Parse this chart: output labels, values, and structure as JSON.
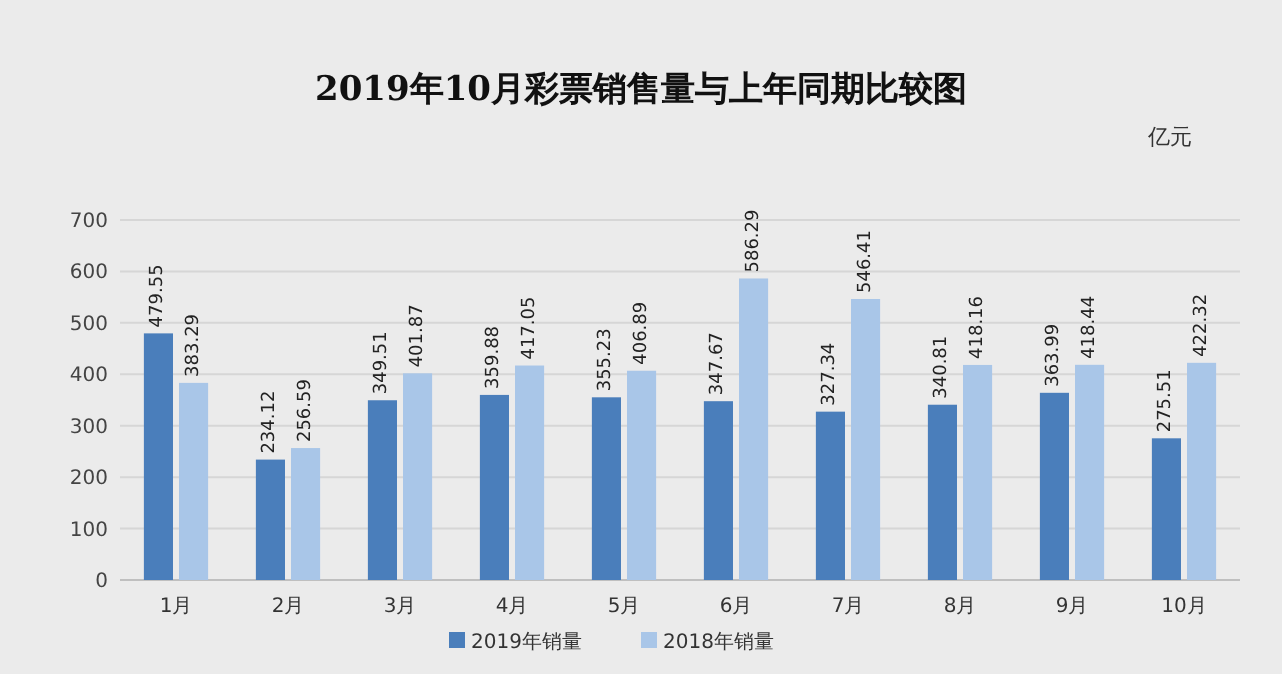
{
  "chart_data": {
    "type": "bar",
    "title": "2019年10月彩票销售量与上年同期比较图",
    "annotations": [
      "亿元"
    ],
    "categories": [
      "1月",
      "2月",
      "3月",
      "4月",
      "5月",
      "6月",
      "7月",
      "8月",
      "9月",
      "10月"
    ],
    "series": [
      {
        "name": "2019年销量",
        "color": "#4a7ebb",
        "values": [
          479.55,
          234.12,
          349.51,
          359.88,
          355.23,
          347.67,
          327.34,
          340.81,
          363.99,
          275.51
        ]
      },
      {
        "name": "2018年销量",
        "color": "#a9c6e8",
        "values": [
          383.29,
          256.59,
          401.87,
          417.05,
          406.89,
          586.29,
          546.41,
          418.16,
          418.44,
          422.32
        ]
      }
    ],
    "ylim": [
      0,
      700
    ],
    "yticks": [
      0,
      100,
      200,
      300,
      400,
      500,
      600,
      700
    ],
    "grid": "y",
    "legend": "bottom",
    "data_labels": true
  }
}
